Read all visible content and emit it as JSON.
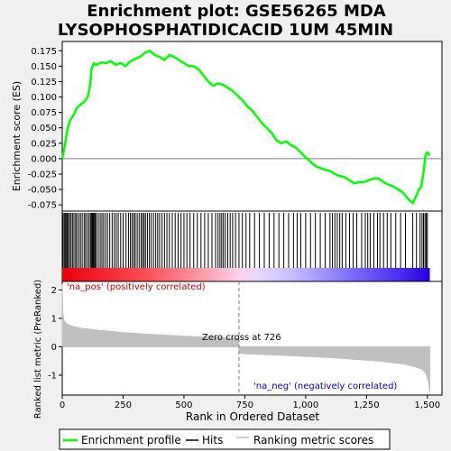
{
  "title_line1": "Enrichment plot: GSE56265 MDA",
  "title_line2": "LYSOPHOSPHATIDICACID  1UM 45MIN",
  "colors": {
    "es_line": "#00ff00",
    "hits": "#000000",
    "metric_fill": "#c0c0c0",
    "zero_line": "#808080",
    "pos_text": "#c00000",
    "neg_text": "#0000c0",
    "pos_strong": "#e8000a",
    "neg_strong": "#2600d8"
  },
  "chart_data": {
    "type": "line",
    "es_panel": {
      "ylabel": "Enrichment score (ES)",
      "ylim": [
        -0.085,
        0.19
      ],
      "yticks": [
        0.175,
        0.15,
        0.125,
        0.1,
        0.075,
        0.05,
        0.025,
        0.0,
        -0.025,
        -0.05,
        -0.075
      ],
      "ytick_labels": [
        "0.175",
        "0.150",
        "0.125",
        "0.100",
        "0.075",
        "0.050",
        "0.025",
        "0.000",
        "-0.025",
        "-0.050",
        "-0.075"
      ],
      "x": [
        0,
        10,
        20,
        30,
        45,
        60,
        75,
        90,
        105,
        115,
        120,
        130,
        140,
        160,
        180,
        200,
        220,
        240,
        260,
        280,
        300,
        320,
        340,
        360,
        380,
        400,
        420,
        440,
        460,
        480,
        500,
        520,
        540,
        560,
        580,
        600,
        620,
        640,
        660,
        680,
        700,
        720,
        740,
        760,
        780,
        800,
        820,
        840,
        860,
        880,
        900,
        920,
        940,
        960,
        980,
        1000,
        1020,
        1040,
        1060,
        1080,
        1100,
        1120,
        1140,
        1160,
        1180,
        1200,
        1220,
        1240,
        1260,
        1280,
        1300,
        1320,
        1340,
        1360,
        1380,
        1400,
        1420,
        1440,
        1455,
        1465,
        1475,
        1485,
        1492,
        1498,
        1505,
        1510
      ],
      "y": [
        0.0,
        0.02,
        0.045,
        0.06,
        0.07,
        0.082,
        0.088,
        0.092,
        0.1,
        0.12,
        0.145,
        0.155,
        0.152,
        0.156,
        0.155,
        0.158,
        0.152,
        0.155,
        0.15,
        0.158,
        0.162,
        0.165,
        0.172,
        0.175,
        0.168,
        0.165,
        0.16,
        0.168,
        0.165,
        0.16,
        0.155,
        0.15,
        0.15,
        0.145,
        0.135,
        0.125,
        0.118,
        0.122,
        0.12,
        0.115,
        0.11,
        0.102,
        0.095,
        0.085,
        0.078,
        0.068,
        0.058,
        0.05,
        0.042,
        0.03,
        0.025,
        0.028,
        0.022,
        0.018,
        0.01,
        0.002,
        -0.005,
        -0.012,
        -0.015,
        -0.018,
        -0.02,
        -0.025,
        -0.028,
        -0.03,
        -0.035,
        -0.04,
        -0.038,
        -0.038,
        -0.035,
        -0.032,
        -0.032,
        -0.038,
        -0.042,
        -0.045,
        -0.05,
        -0.055,
        -0.065,
        -0.072,
        -0.06,
        -0.05,
        -0.045,
        -0.02,
        0.005,
        0.01,
        0.008,
        0.005
      ]
    },
    "hits": [
      3,
      8,
      12,
      16,
      20,
      25,
      30,
      36,
      42,
      48,
      55,
      60,
      68,
      75,
      82,
      90,
      96,
      103,
      110,
      116,
      120,
      124,
      128,
      132,
      136,
      140,
      148,
      156,
      163,
      170,
      178,
      186,
      195,
      205,
      214,
      222,
      230,
      240,
      250,
      262,
      272,
      280,
      287,
      294,
      300,
      308,
      316,
      324,
      330,
      336,
      342,
      350,
      358,
      366,
      375,
      384,
      392,
      400,
      410,
      420,
      430,
      440,
      452,
      464,
      476,
      488,
      500,
      512,
      525,
      540,
      555,
      570,
      585,
      600,
      615,
      630,
      640,
      648,
      655,
      662,
      670,
      680,
      690,
      700,
      712,
      726,
      740,
      755,
      770,
      790,
      810,
      830,
      850,
      870,
      890,
      910,
      930,
      950,
      965,
      980,
      1000,
      1020,
      1040,
      1060,
      1080,
      1100,
      1110,
      1120,
      1130,
      1140,
      1150,
      1165,
      1180,
      1195,
      1210,
      1230,
      1245,
      1255,
      1265,
      1280,
      1295,
      1305,
      1320,
      1335,
      1350,
      1370,
      1390,
      1410,
      1440,
      1455,
      1470,
      1478,
      1484,
      1490,
      1495,
      1500
    ],
    "metric_panel": {
      "ylabel": "Ranked list metric (PreRanked)",
      "ylim": [
        -1.7,
        2.3
      ],
      "yticks": [
        2,
        1,
        0,
        -1
      ],
      "ytick_labels": [
        "2",
        "1",
        "0",
        "-1"
      ],
      "profile_x": [
        0,
        2,
        5,
        10,
        20,
        40,
        80,
        150,
        250,
        400,
        550,
        700,
        725,
        726,
        760,
        900,
        1100,
        1300,
        1400,
        1450,
        1480,
        1495,
        1505,
        1510
      ],
      "profile_y": [
        2.2,
        1.3,
        1.0,
        0.88,
        0.8,
        0.72,
        0.65,
        0.58,
        0.5,
        0.42,
        0.35,
        0.3,
        0.28,
        -0.22,
        -0.25,
        -0.3,
        -0.38,
        -0.5,
        -0.6,
        -0.7,
        -0.8,
        -0.95,
        -1.25,
        -1.6
      ]
    },
    "xlabel": "Rank in Ordered Dataset",
    "xlim": [
      0,
      1560
    ],
    "xticks": [
      0,
      250,
      500,
      750,
      1000,
      1250,
      1500
    ],
    "xtick_labels": [
      "0",
      "250",
      "500",
      "750",
      "1,000",
      "1,250",
      "1,500"
    ],
    "zero_cross": 726,
    "zero_cross_label": "Zero cross at 726",
    "pos_label": "'na_pos' (positively correlated)",
    "neg_label": "'na_neg' (negatively correlated)",
    "legend": [
      "Enrichment profile",
      "Hits",
      "Ranking metric scores"
    ]
  }
}
